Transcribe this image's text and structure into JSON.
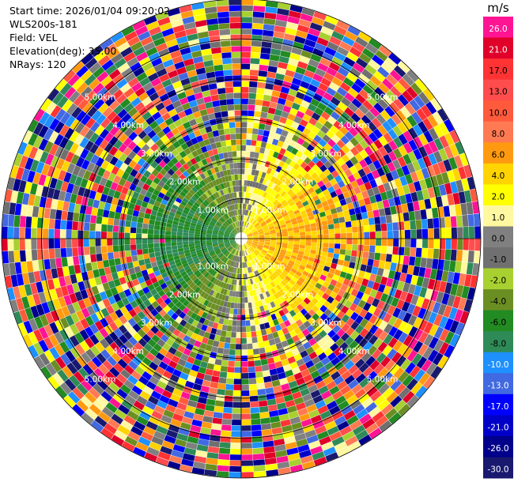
{
  "info": {
    "start_time": "Start time: 2026/01/04 09:20:02",
    "instrument": "WLS200s-181",
    "field": "Field: VEL",
    "elevation": "Elevation(deg): 35.00",
    "nrays": "NRays: 120"
  },
  "chart_data": {
    "type": "heatmap",
    "projection": "polar-ppi",
    "field": "VEL",
    "units": "m/s",
    "n_rays": 120,
    "elevation_deg": 35.0,
    "max_range_km": 6.0,
    "ring_labels": [
      "1.00km",
      "2.00km",
      "3.00km",
      "4.00km",
      "5.00km"
    ],
    "colorbar": {
      "label": "m/s",
      "tick_labels": [
        "26.0",
        "21.0",
        "17.0",
        "13.0",
        "10.0",
        "8.0",
        "6.0",
        "4.0",
        "2.0",
        "1.0",
        "0.0",
        "-1.0",
        "-2.0",
        "-4.0",
        "-6.0",
        "-8.0",
        "-10.0",
        "-13.0",
        "-17.0",
        "-21.0",
        "-26.0",
        "-30.0"
      ],
      "colors": [
        "#ff1493",
        "#e0002a",
        "#ff3333",
        "#ff4d4d",
        "#ff5a3c",
        "#ff7a52",
        "#ff9a10",
        "#ffd400",
        "#ffff00",
        "#fff8a0",
        "#808080",
        "#707070",
        "#a8d030",
        "#6b8e23",
        "#228b22",
        "#2e8b57",
        "#1e90ff",
        "#4169e1",
        "#0000ff",
        "#0000c8",
        "#00008b",
        "#191970"
      ]
    }
  }
}
